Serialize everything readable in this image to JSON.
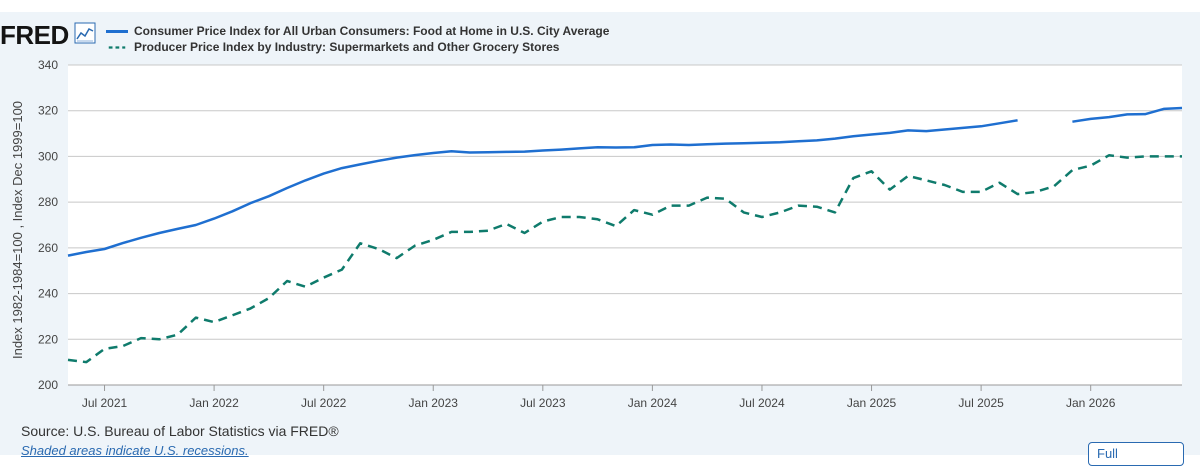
{
  "header": {
    "logo": "FRED",
    "logo_icon": "line-chart-icon"
  },
  "source": "Source: U.S. Bureau of Labor Statistics via FRED®",
  "note": "Shaded areas indicate U.S. recessions.",
  "fullscreen_button": "Full",
  "colors": {
    "series1": "#1f6fd0",
    "series2": "#0f7b6c",
    "grid": "#c8c8c8",
    "panel": "#eef4f9"
  },
  "chart_data": {
    "type": "line",
    "title": "",
    "xlabel": "",
    "ylabel": "Index 1982-1984=100 , Index Dec 1999=100",
    "ylim": [
      200,
      340
    ],
    "yticks": [
      200,
      220,
      240,
      260,
      280,
      300,
      320,
      340
    ],
    "xlim": [
      "2021-05",
      "2026-06"
    ],
    "xticks": [
      {
        "label": "Jul 2021",
        "date": "2021-07"
      },
      {
        "label": "Jan 2022",
        "date": "2022-01"
      },
      {
        "label": "Jul 2022",
        "date": "2022-07"
      },
      {
        "label": "Jan 2023",
        "date": "2023-01"
      },
      {
        "label": "Jul 2023",
        "date": "2023-07"
      },
      {
        "label": "Jan 2024",
        "date": "2024-01"
      },
      {
        "label": "Jul 2024",
        "date": "2024-07"
      },
      {
        "label": "Jan 2025",
        "date": "2025-01"
      },
      {
        "label": "Jul 2025",
        "date": "2025-07"
      },
      {
        "label": "Jan 2026",
        "date": "2026-01"
      }
    ],
    "grid": "horizontal",
    "legend_position": "top-left",
    "x": [
      "2021-05",
      "2021-06",
      "2021-07",
      "2021-08",
      "2021-09",
      "2021-10",
      "2021-11",
      "2021-12",
      "2022-01",
      "2022-02",
      "2022-03",
      "2022-04",
      "2022-05",
      "2022-06",
      "2022-07",
      "2022-08",
      "2022-09",
      "2022-10",
      "2022-11",
      "2022-12",
      "2023-01",
      "2023-02",
      "2023-03",
      "2023-04",
      "2023-05",
      "2023-06",
      "2023-07",
      "2023-08",
      "2023-09",
      "2023-10",
      "2023-11",
      "2023-12",
      "2024-01",
      "2024-02",
      "2024-03",
      "2024-04",
      "2024-05",
      "2024-06",
      "2024-07",
      "2024-08",
      "2024-09",
      "2024-10",
      "2024-11",
      "2024-12",
      "2025-01",
      "2025-02",
      "2025-03",
      "2025-04",
      "2025-05",
      "2025-06",
      "2025-07",
      "2025-08",
      "2025-09",
      "2025-10",
      "2025-11",
      "2025-12",
      "2026-01",
      "2026-02",
      "2026-03",
      "2026-04",
      "2026-05",
      "2026-06"
    ],
    "series": [
      {
        "name": "Consumer Price Index for All Urban Consumers: Food at Home in U.S. City Average",
        "style": "solid",
        "values": [
          256.6,
          258.2,
          259.5,
          262.1,
          264.4,
          266.5,
          268.3,
          270.0,
          272.8,
          276.0,
          279.6,
          282.6,
          286.2,
          289.5,
          292.5,
          294.9,
          296.5,
          298.1,
          299.5,
          300.6,
          301.5,
          302.3,
          301.7,
          301.8,
          302.0,
          302.1,
          302.6,
          303.0,
          303.5,
          304.0,
          303.9,
          304.0,
          305.0,
          305.2,
          305.0,
          305.3,
          305.6,
          305.8,
          306.0,
          306.2,
          306.6,
          307.0,
          307.8,
          308.8,
          309.6,
          310.3,
          311.4,
          311.1,
          311.8,
          312.5,
          313.2,
          314.5,
          315.8,
          null,
          null,
          315.2,
          316.4,
          317.2,
          318.4,
          318.5,
          320.8,
          321.2
        ]
      },
      {
        "name": "Producer Price Index by Industry: Supermarkets and Other Grocery Stores",
        "style": "dashed",
        "values": [
          211.0,
          210.0,
          215.8,
          217.0,
          220.5,
          220.0,
          222.0,
          229.5,
          227.5,
          230.5,
          233.5,
          238.0,
          245.5,
          243.0,
          247.0,
          250.5,
          262.0,
          259.5,
          255.5,
          261.0,
          263.5,
          267.0,
          267.0,
          267.5,
          270.5,
          266.5,
          271.5,
          273.5,
          273.5,
          272.5,
          269.5,
          276.5,
          274.5,
          278.5,
          278.5,
          282.0,
          281.5,
          275.5,
          273.5,
          275.5,
          278.5,
          278.0,
          275.5,
          290.5,
          293.5,
          285.5,
          291.5,
          289.5,
          287.5,
          284.5,
          284.5,
          288.5,
          283.5,
          284.5,
          287.0,
          294.0,
          296.0,
          300.5,
          299.5,
          300.0,
          300.0,
          300.0
        ]
      }
    ]
  }
}
